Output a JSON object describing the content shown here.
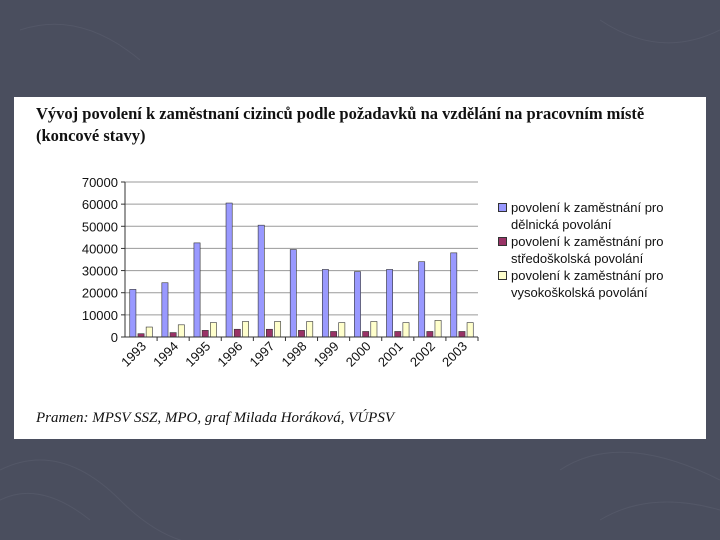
{
  "slide": {
    "background": "#4a4e5e"
  },
  "figure": {
    "title": "Vývoj povolení k zaměstnaní cizinců podle požadavků na vzdělání na pracovním místě (koncové stavy)",
    "source": "Pramen: MPSV SSZ, MPO, graf Milada Horáková, VÚPSV"
  },
  "chart_data": {
    "type": "bar",
    "title": "",
    "xlabel": "",
    "ylabel": "",
    "categories": [
      "1993",
      "1994",
      "1995",
      "1996",
      "1997",
      "1998",
      "1999",
      "2000",
      "2001",
      "2002",
      "2003"
    ],
    "ylim": [
      0,
      70000
    ],
    "yticks": [
      "70000",
      "60000",
      "50000",
      "40000",
      "30000",
      "20000",
      "10000",
      "0"
    ],
    "ytick_values": [
      70000,
      60000,
      50000,
      40000,
      30000,
      20000,
      10000,
      0
    ],
    "grid": true,
    "legend_position": "right",
    "series": [
      {
        "name": "povolení k zaměstnání pro dělnická povolání",
        "color": "#9999ff",
        "values": [
          21500,
          24500,
          42500,
          60500,
          50500,
          39500,
          30500,
          29500,
          30500,
          34000,
          38000
        ]
      },
      {
        "name": "povolení k zaměstnání pro středoškolská povolání",
        "color": "#993366",
        "values": [
          1500,
          2000,
          3000,
          3500,
          3500,
          3000,
          2500,
          2500,
          2500,
          2500,
          2500
        ]
      },
      {
        "name": "povolení k zaměstnání pro vysokoškolská povolání",
        "color": "#ffffcc",
        "values": [
          4500,
          5500,
          6500,
          7000,
          7000,
          7000,
          6500,
          7000,
          6500,
          7500,
          6500
        ]
      }
    ]
  }
}
